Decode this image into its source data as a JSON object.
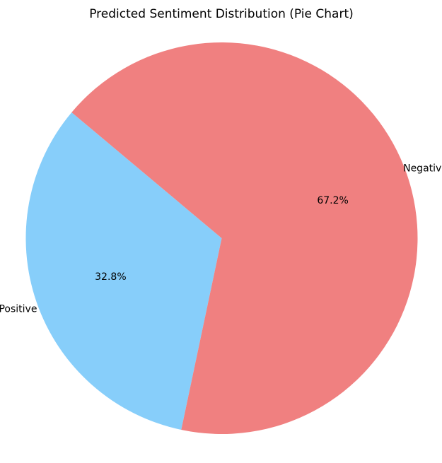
{
  "chart_data": {
    "type": "pie",
    "title": "Predicted Sentiment Distribution (Pie Chart)",
    "slices": [
      {
        "label": "Positive",
        "percent": "32.8%",
        "value": 32.8,
        "color": "#87cefa"
      },
      {
        "label": "Negative",
        "percent": "67.2%",
        "value": 67.2,
        "color": "#f08080"
      }
    ],
    "start_angle_deg": 140,
    "direction": "counterclockwise"
  }
}
